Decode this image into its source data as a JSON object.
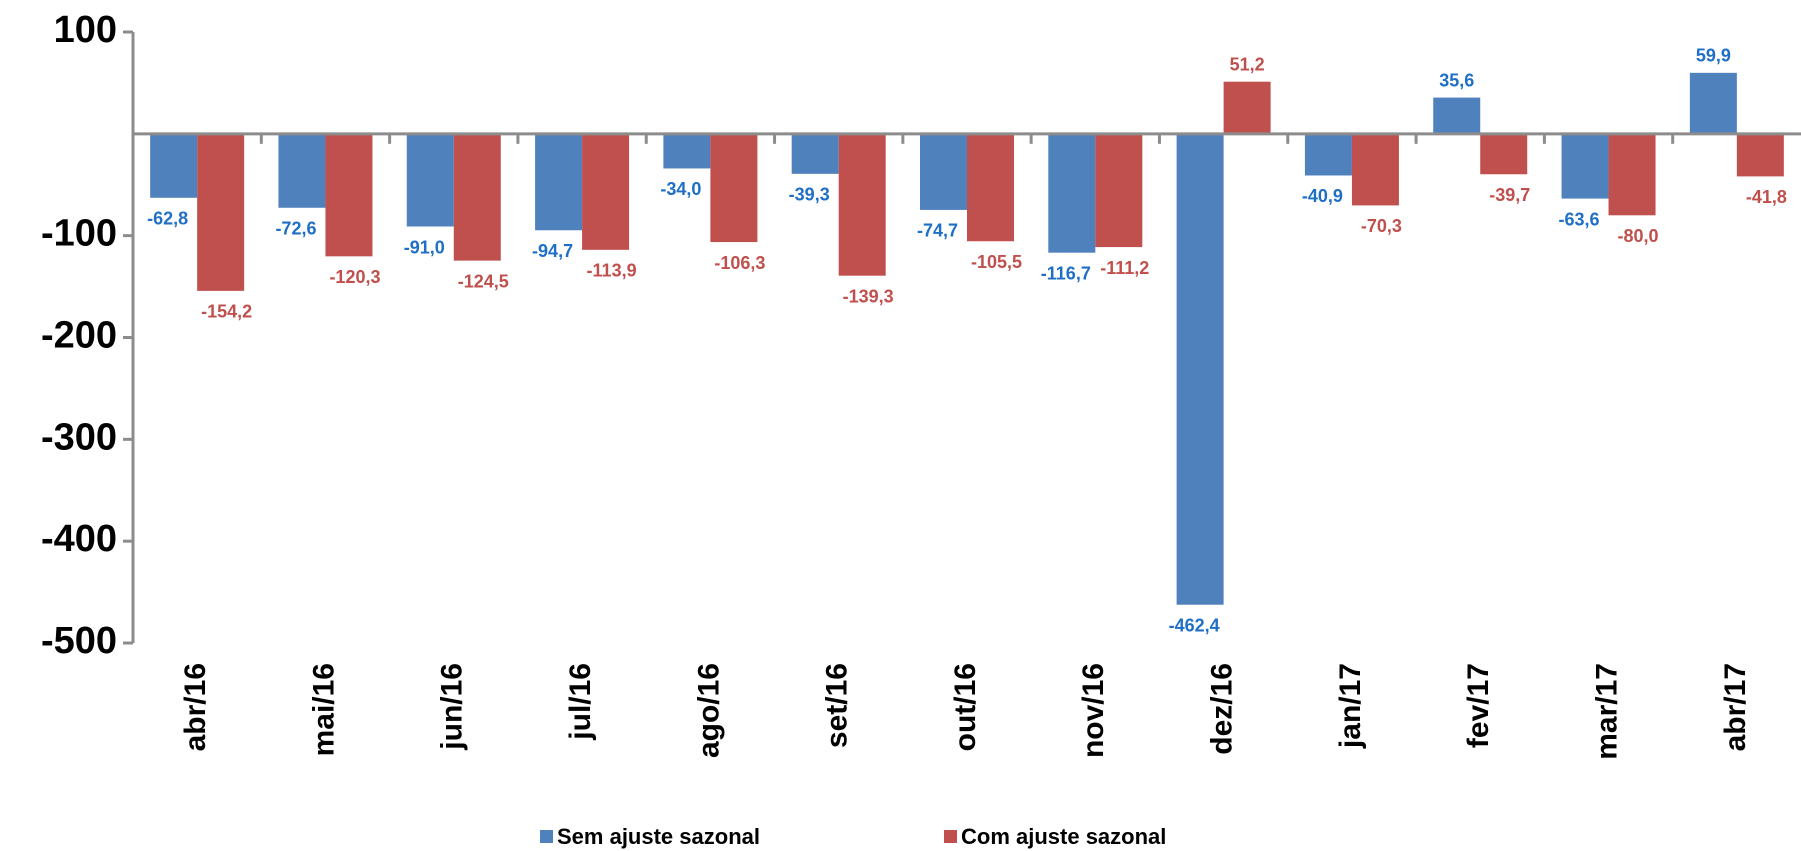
{
  "chart_data": {
    "type": "bar",
    "categories": [
      "abr/16",
      "mai/16",
      "jun/16",
      "jul/16",
      "ago/16",
      "set/16",
      "out/16",
      "nov/16",
      "dez/16",
      "jan/17",
      "fev/17",
      "mar/17",
      "abr/17"
    ],
    "series": [
      {
        "name": "Sem ajuste sazonal",
        "color": "#4f81bd",
        "label_color": "#1f6fc6",
        "values": [
          -62.8,
          -72.6,
          -91.0,
          -94.7,
          -34.0,
          -39.3,
          -74.7,
          -116.7,
          -462.4,
          -40.9,
          35.6,
          -63.6,
          59.9
        ],
        "value_labels": [
          "-62,8",
          "-72,6",
          "-91,0",
          "-94,7",
          "-34,0",
          "-39,3",
          "-74,7",
          "-116,7",
          "-462,4",
          "-40,9",
          "35,6",
          "-63,6",
          "59,9"
        ]
      },
      {
        "name": "Com ajuste sazonal",
        "color": "#c0504d",
        "label_color": "#c0504d",
        "values": [
          -154.2,
          -120.3,
          -124.5,
          -113.9,
          -106.3,
          -139.3,
          -105.5,
          -111.2,
          51.2,
          -70.3,
          -39.7,
          -80.0,
          -41.8
        ],
        "value_labels": [
          "-154,2",
          "-120,3",
          "-124,5",
          "-113,9",
          "-106,3",
          "-139,3",
          "-105,5",
          "-111,2",
          "51,2",
          "-70,3",
          "-39,7",
          "-80,0",
          "-41,8"
        ]
      }
    ],
    "ylim": [
      -500,
      100
    ],
    "yticks": [
      100,
      -100,
      -200,
      -300,
      -400,
      -500
    ],
    "grid": false
  }
}
